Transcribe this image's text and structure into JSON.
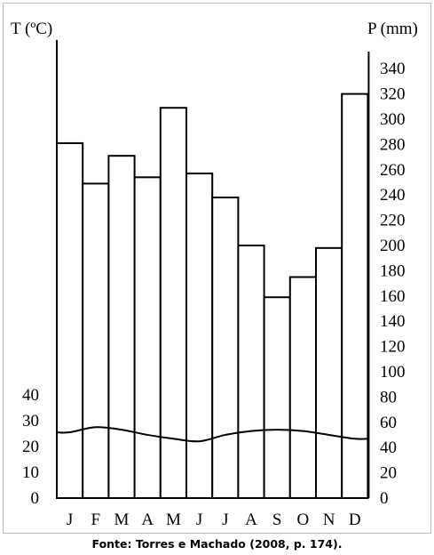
{
  "chart_data": {
    "type": "bar",
    "categories": [
      "J",
      "F",
      "M",
      "A",
      "M",
      "J",
      "J",
      "A",
      "S",
      "O",
      "N",
      "D"
    ],
    "series": [
      {
        "name": "",
        "kind": "bar",
        "axis": "right",
        "values": [
          281,
          249,
          271,
          254,
          309,
          257,
          238,
          200,
          159,
          175,
          198,
          320
        ]
      },
      {
        "name": "",
        "kind": "line",
        "axis": "left",
        "values": [
          25.5,
          27.5,
          26.5,
          24.5,
          23,
          22,
          24.5,
          26,
          26.5,
          26,
          24.5,
          23
        ]
      }
    ],
    "y_left": {
      "label": "T (ºC)",
      "ticks": [
        0,
        10,
        20,
        30,
        40
      ],
      "range": [
        0,
        40
      ]
    },
    "y_right": {
      "label": "P (mm)",
      "ticks": [
        0,
        20,
        40,
        60,
        80,
        100,
        120,
        140,
        160,
        180,
        200,
        220,
        240,
        260,
        280,
        300,
        320,
        340
      ],
      "range": [
        0,
        340
      ]
    },
    "grid": false,
    "legend": "none"
  },
  "caption": "Fonte: Torres e Machado (2008, p. 174)."
}
